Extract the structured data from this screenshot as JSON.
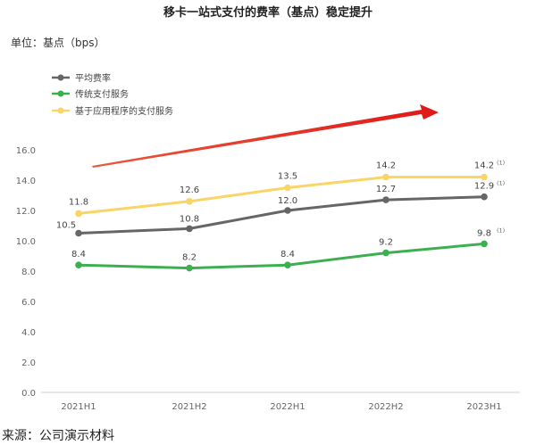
{
  "chart_data": {
    "type": "line",
    "title": "移卡一站式支付的费率（基点）稳定提升",
    "unit_label": "单位：基点（bps）",
    "categories": [
      "2021H1",
      "2021H2",
      "2022H1",
      "2022H2",
      "2023H1"
    ],
    "ylim": [
      0,
      16
    ],
    "yticks": [
      "0.0",
      "2.0",
      "4.0",
      "6.0",
      "8.0",
      "10.0",
      "12.0",
      "14.0",
      "16.0"
    ],
    "grid": false,
    "legend_position": "top-left",
    "series": [
      {
        "name": "平均费率",
        "color": "#666666",
        "values": [
          10.5,
          10.8,
          12.0,
          12.7,
          12.9
        ],
        "labels": [
          "10.5",
          "10.8",
          "12.0",
          "12.7",
          "12.9"
        ]
      },
      {
        "name": "传统支付服务",
        "color": "#3cb050",
        "values": [
          8.4,
          8.2,
          8.4,
          9.2,
          9.8
        ],
        "labels": [
          "8.4",
          "8.2",
          "8.4",
          "9.2",
          "9.8"
        ]
      },
      {
        "name": "基于应用程序的支付服务",
        "color": "#f9d466",
        "values": [
          11.8,
          12.6,
          13.5,
          14.2,
          14.2
        ],
        "labels": [
          "11.8",
          "12.6",
          "13.5",
          "14.2",
          "14.2"
        ]
      }
    ],
    "footnote_marker": "(1)",
    "trend_arrow_color": "#e03020",
    "source": "来源：公司演示材料"
  }
}
